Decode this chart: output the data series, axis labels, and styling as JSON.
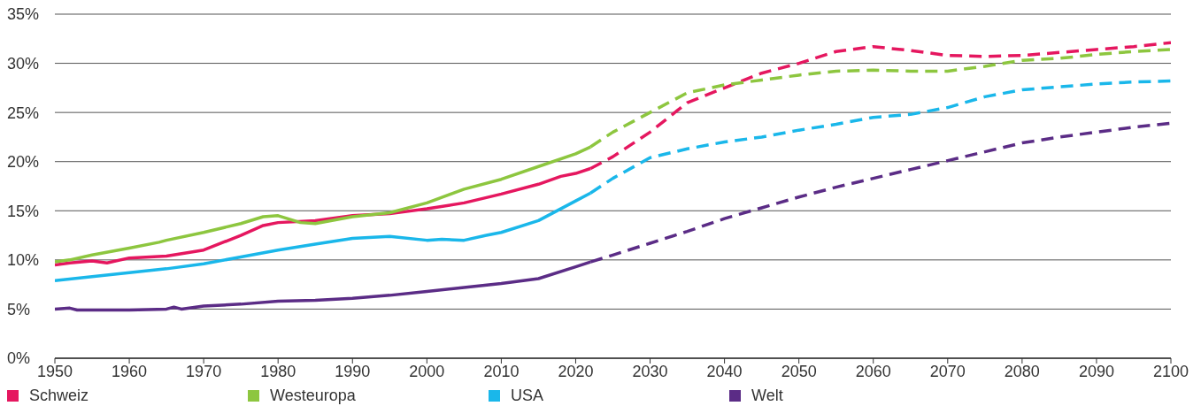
{
  "chart_data": {
    "type": "line",
    "marker": "none",
    "grid": "y",
    "legend": "bottom left",
    "xlim": [
      1950,
      2100
    ],
    "xticks": [
      1950,
      1960,
      1970,
      1980,
      1990,
      2000,
      2010,
      2020,
      2030,
      2040,
      2050,
      2060,
      2070,
      2080,
      2090,
      2100
    ],
    "ylim": [
      0,
      35
    ],
    "yticks": [
      {
        "value": 0,
        "label": "0%"
      },
      {
        "value": 5,
        "label": "5%"
      },
      {
        "value": 10,
        "label": "10%"
      },
      {
        "value": 15,
        "label": "15%"
      },
      {
        "value": 20,
        "label": "20%"
      },
      {
        "value": 25,
        "label": "25%"
      },
      {
        "value": 30,
        "label": "30%"
      },
      {
        "value": 35,
        "label": "35%"
      }
    ],
    "series": [
      {
        "name": "Schweiz",
        "color": "#e5175f",
        "line_style": "solid",
        "x": [
          1950,
          1952,
          1955,
          1957,
          1960,
          1965,
          1970,
          1975,
          1978,
          1980,
          1985,
          1990,
          1995,
          2000,
          2005,
          2010,
          2015,
          2018,
          2020,
          2022
        ],
        "values": [
          9.5,
          9.7,
          9.9,
          9.7,
          10.2,
          10.4,
          11.0,
          12.5,
          13.5,
          13.8,
          14.0,
          14.5,
          14.7,
          15.2,
          15.8,
          16.7,
          17.7,
          18.5,
          18.8,
          19.3
        ]
      },
      {
        "name": "Westeuropa",
        "color": "#8dc63f",
        "line_style": "solid",
        "x": [
          1950,
          1952,
          1955,
          1960,
          1964,
          1965,
          1970,
          1975,
          1978,
          1980,
          1983,
          1985,
          1990,
          1995,
          2000,
          2005,
          2010,
          2015,
          2020,
          2022
        ],
        "values": [
          9.8,
          10.0,
          10.5,
          11.2,
          11.8,
          12.0,
          12.8,
          13.7,
          14.4,
          14.5,
          13.8,
          13.7,
          14.4,
          14.8,
          15.8,
          17.2,
          18.2,
          19.5,
          20.8,
          21.5
        ]
      },
      {
        "name": "USA",
        "color": "#1ab7ea",
        "line_style": "solid",
        "x": [
          1950,
          1955,
          1960,
          1965,
          1970,
          1975,
          1980,
          1985,
          1990,
          1995,
          2000,
          2002,
          2005,
          2008,
          2010,
          2015,
          2020,
          2022
        ],
        "values": [
          7.9,
          8.3,
          8.7,
          9.1,
          9.6,
          10.3,
          11.0,
          11.6,
          12.2,
          12.4,
          12.0,
          12.1,
          12.0,
          12.5,
          12.8,
          14.0,
          16.0,
          16.8
        ]
      },
      {
        "name": "Welt",
        "color": "#5b2c86",
        "line_style": "solid",
        "x": [
          1950,
          1952,
          1953,
          1960,
          1965,
          1966,
          1967,
          1970,
          1975,
          1980,
          1985,
          1990,
          1995,
          2000,
          2005,
          2010,
          2015,
          2020,
          2022
        ],
        "values": [
          5.0,
          5.1,
          4.9,
          4.9,
          5.0,
          5.2,
          5.0,
          5.3,
          5.5,
          5.8,
          5.9,
          6.1,
          6.4,
          6.8,
          7.2,
          7.6,
          8.1,
          9.3,
          9.8
        ]
      },
      {
        "color": "#e5175f",
        "line_style": "dashed",
        "x": [
          2022,
          2025,
          2030,
          2035,
          2040,
          2045,
          2050,
          2055,
          2060,
          2065,
          2070,
          2075,
          2080,
          2085,
          2090,
          2095,
          2100
        ],
        "values": [
          19.3,
          20.5,
          23.0,
          26.0,
          27.5,
          29.0,
          30.0,
          31.2,
          31.7,
          31.3,
          30.8,
          30.7,
          30.8,
          31.1,
          31.4,
          31.7,
          32.1
        ]
      },
      {
        "color": "#8dc63f",
        "line_style": "dashed",
        "x": [
          2022,
          2025,
          2030,
          2035,
          2040,
          2045,
          2050,
          2055,
          2060,
          2065,
          2070,
          2075,
          2080,
          2085,
          2090,
          2095,
          2100
        ],
        "values": [
          21.5,
          23.0,
          25.0,
          27.0,
          27.8,
          28.3,
          28.8,
          29.2,
          29.3,
          29.2,
          29.2,
          29.7,
          30.3,
          30.5,
          30.9,
          31.2,
          31.4
        ]
      },
      {
        "color": "#1ab7ea",
        "line_style": "dashed",
        "x": [
          2022,
          2025,
          2030,
          2035,
          2040,
          2045,
          2050,
          2055,
          2060,
          2065,
          2070,
          2075,
          2080,
          2085,
          2090,
          2095,
          2100
        ],
        "values": [
          16.8,
          18.3,
          20.4,
          21.3,
          22.0,
          22.5,
          23.2,
          23.8,
          24.5,
          24.8,
          25.5,
          26.6,
          27.3,
          27.6,
          27.9,
          28.1,
          28.2
        ]
      },
      {
        "color": "#5b2c86",
        "line_style": "dashed",
        "x": [
          2022,
          2025,
          2030,
          2035,
          2040,
          2045,
          2050,
          2055,
          2060,
          2065,
          2070,
          2075,
          2080,
          2085,
          2090,
          2095,
          2100
        ],
        "values": [
          9.8,
          10.5,
          11.7,
          12.9,
          14.2,
          15.3,
          16.4,
          17.4,
          18.3,
          19.2,
          20.1,
          21.0,
          21.9,
          22.5,
          23.0,
          23.5,
          23.9
        ]
      }
    ]
  }
}
